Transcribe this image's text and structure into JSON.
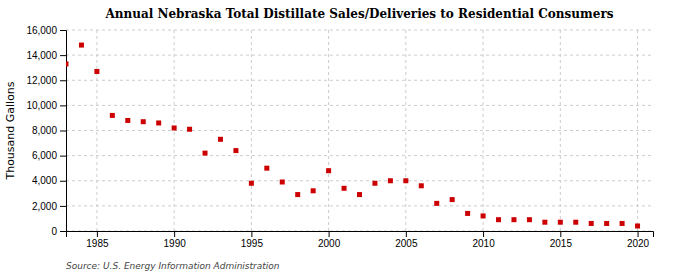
{
  "chart_data": {
    "type": "scatter",
    "title": "Annual Nebraska Total Distillate Sales/Deliveries to Residential Consumers",
    "ylabel": "Thousand Gallons",
    "source": "Source: U.S. Energy Information Administration",
    "x": [
      1983,
      1984,
      1985,
      1986,
      1987,
      1988,
      1989,
      1990,
      1991,
      1992,
      1993,
      1994,
      1995,
      1996,
      1997,
      1998,
      1999,
      2000,
      2001,
      2002,
      2003,
      2004,
      2005,
      2006,
      2007,
      2008,
      2009,
      2010,
      2011,
      2012,
      2013,
      2014,
      2015,
      2016,
      2017,
      2018,
      2019,
      2020
    ],
    "values": [
      13300,
      14800,
      12700,
      9200,
      8800,
      8700,
      8600,
      8200,
      8100,
      6200,
      7300,
      6400,
      3800,
      5000,
      3900,
      2900,
      3200,
      4800,
      3400,
      2900,
      3800,
      4000,
      4000,
      3600,
      2200,
      2500,
      1400,
      1200,
      900,
      900,
      900,
      700,
      700,
      700,
      600,
      600,
      600,
      400
    ],
    "color": "#cc0000",
    "marker": "square",
    "xlim": [
      1983,
      2021
    ],
    "ylim": [
      0,
      16000
    ],
    "xticks": [
      1985,
      1990,
      1995,
      2000,
      2005,
      2010,
      2015,
      2020
    ],
    "yticks": [
      0,
      {
        "value": 2000,
        "label": "2,000"
      },
      {
        "value": 4000,
        "label": "4,000"
      },
      {
        "value": 6000,
        "label": "6,000"
      },
      {
        "value": 8000,
        "label": "8,000"
      },
      {
        "value": 10000,
        "label": "10,000"
      },
      {
        "value": 12000,
        "label": "12,000"
      },
      {
        "value": 14000,
        "label": "14,000"
      },
      {
        "value": 16000,
        "label": "16,000"
      }
    ],
    "grid": true
  }
}
